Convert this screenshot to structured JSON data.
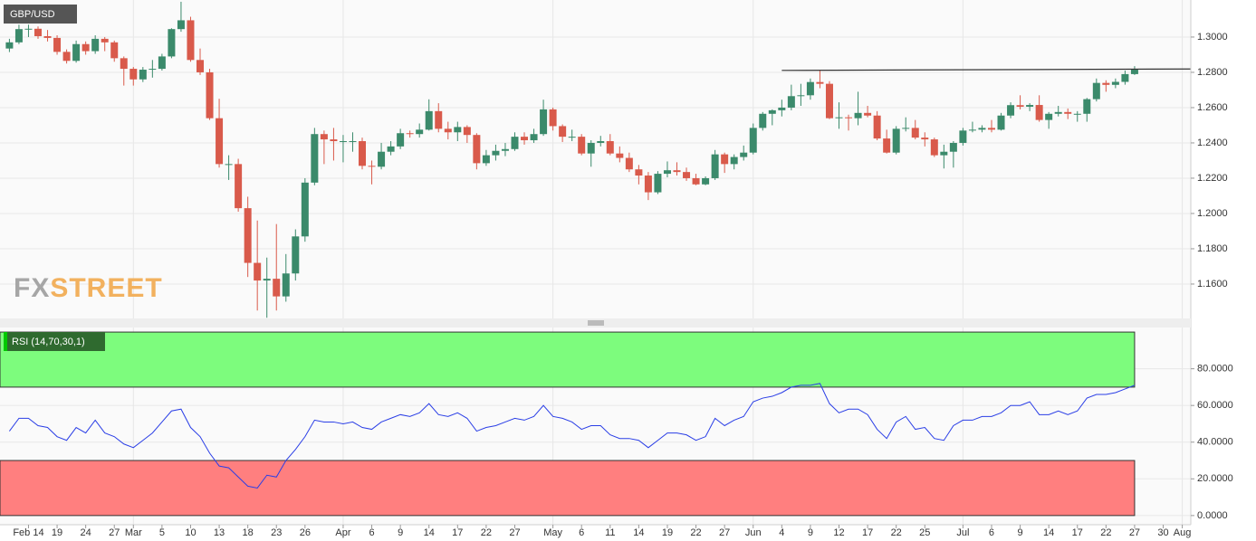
{
  "chart_data": [
    {
      "type": "candlestick",
      "title": "GBP/USD",
      "categories": [
        null,
        null,
        "Feb 14",
        null,
        null,
        "19",
        null,
        null,
        "24",
        null,
        null,
        "27",
        null,
        "Mar",
        null,
        null,
        "5",
        null,
        null,
        "10",
        null,
        null,
        "13",
        null,
        null,
        "18",
        null,
        null,
        "23",
        null,
        null,
        "26",
        null,
        null,
        null,
        "Apr",
        null,
        null,
        "6",
        null,
        null,
        "9",
        null,
        null,
        "14",
        null,
        null,
        "17",
        null,
        null,
        "22",
        null,
        null,
        "27",
        null,
        null,
        null,
        "May",
        null,
        null,
        "6",
        null,
        null,
        "11",
        null,
        null,
        "14",
        null,
        null,
        "19",
        null,
        null,
        "22",
        null,
        null,
        "27",
        null,
        null,
        "Jun",
        null,
        null,
        "4",
        null,
        null,
        "9",
        null,
        null,
        "12",
        null,
        null,
        "17",
        null,
        null,
        "22",
        null,
        null,
        "25",
        null,
        null,
        null,
        "Jul",
        null,
        null,
        "6",
        null,
        null,
        "9",
        null,
        null,
        "14",
        null,
        null,
        "17",
        null,
        null,
        "22",
        null,
        null,
        "27",
        null,
        null,
        "30",
        null,
        "Aug"
      ],
      "open": [
        1.2935,
        1.297,
        1.3045,
        1.3047,
        1.3005,
        1.2995,
        1.2916,
        1.2865,
        1.296,
        1.292,
        1.299,
        1.297,
        1.288,
        1.282,
        1.276,
        1.2815,
        1.282,
        1.289,
        1.3045,
        1.3095,
        1.287,
        1.28,
        1.254,
        1.228,
        1.228,
        1.203,
        1.172,
        1.162,
        1.163,
        1.153,
        1.166,
        1.187,
        1.2175,
        1.245,
        1.242,
        1.241,
        1.241,
        1.241,
        1.227,
        1.2265,
        1.235,
        1.238,
        1.2455,
        1.245,
        1.2475,
        1.258,
        1.248,
        1.246,
        1.249,
        1.2445,
        1.2285,
        1.233,
        1.2355,
        1.2365,
        1.2435,
        1.2415,
        1.245,
        1.259,
        1.2495,
        1.2435,
        1.2435,
        1.234,
        1.24,
        1.241,
        1.234,
        1.2315,
        1.225,
        1.2215,
        1.212,
        1.2225,
        1.2245,
        1.2235,
        1.22,
        1.2165,
        1.22,
        1.2335,
        1.228,
        1.232,
        1.2345,
        1.2485,
        1.2565,
        1.2585,
        1.26,
        1.2665,
        1.267,
        1.2745,
        1.2735,
        1.254,
        1.2545,
        1.254,
        1.257,
        1.2555,
        1.2425,
        1.2345,
        1.248,
        1.2485,
        1.243,
        1.242,
        1.233,
        1.235,
        1.24,
        1.247,
        1.2475,
        1.2485,
        1.2475,
        1.2555,
        1.2614,
        1.2605,
        1.2615,
        1.253,
        1.2565,
        1.2575,
        1.2565,
        1.2565,
        1.2648,
        1.274,
        1.2729,
        1.2746,
        1.279,
        null,
        null,
        null,
        null,
        null
      ],
      "high": [
        1.299,
        1.307,
        1.307,
        1.306,
        1.304,
        1.301,
        1.293,
        1.298,
        1.2975,
        1.301,
        1.3,
        1.298,
        1.289,
        1.283,
        1.283,
        1.287,
        1.2905,
        1.305,
        1.32,
        1.3115,
        1.2935,
        1.282,
        1.265,
        1.233,
        1.231,
        1.2095,
        1.196,
        1.175,
        1.194,
        1.177,
        1.191,
        1.22,
        1.2485,
        1.247,
        1.2485,
        1.2445,
        1.246,
        1.243,
        1.23,
        1.24,
        1.241,
        1.248,
        1.247,
        1.251,
        1.2647,
        1.2625,
        1.252,
        1.252,
        1.25,
        1.2455,
        1.236,
        1.239,
        1.24,
        1.246,
        1.246,
        1.248,
        1.2645,
        1.26,
        1.2505,
        1.2475,
        1.245,
        1.2415,
        1.244,
        1.245,
        1.238,
        1.2345,
        1.2275,
        1.2235,
        1.224,
        1.2295,
        1.229,
        1.226,
        1.2225,
        1.221,
        1.236,
        1.2345,
        1.2335,
        1.2385,
        1.251,
        1.2575,
        1.259,
        1.2645,
        1.273,
        1.2735,
        1.2765,
        1.2813,
        1.275,
        1.263,
        1.256,
        1.269,
        1.261,
        1.258,
        1.2475,
        1.2495,
        1.2545,
        1.253,
        1.246,
        1.243,
        1.239,
        1.241,
        1.2485,
        1.252,
        1.25,
        1.253,
        1.257,
        1.263,
        1.267,
        1.2625,
        1.267,
        1.2575,
        1.261,
        1.2595,
        1.258,
        1.2655,
        1.2765,
        1.2755,
        1.2765,
        1.281,
        1.2835,
        null,
        null,
        null,
        null,
        null
      ],
      "low": [
        1.2915,
        1.296,
        1.3,
        1.299,
        1.2975,
        1.29,
        1.285,
        1.2855,
        1.29,
        1.2905,
        1.292,
        1.286,
        1.2725,
        1.2725,
        1.2745,
        1.277,
        1.281,
        1.288,
        1.303,
        1.286,
        1.2785,
        1.253,
        1.226,
        1.219,
        1.201,
        1.164,
        1.145,
        1.1409,
        1.145,
        1.15,
        1.162,
        1.184,
        1.216,
        1.228,
        1.23,
        1.229,
        1.235,
        1.225,
        1.2165,
        1.225,
        1.233,
        1.2365,
        1.243,
        1.243,
        1.247,
        1.246,
        1.242,
        1.241,
        1.24,
        1.225,
        1.227,
        1.23,
        1.2325,
        1.2355,
        1.239,
        1.24,
        1.244,
        1.247,
        1.2405,
        1.241,
        1.233,
        1.2265,
        1.238,
        1.233,
        1.229,
        1.2235,
        1.2165,
        1.2076,
        1.211,
        1.2205,
        1.2215,
        1.2185,
        1.216,
        1.216,
        1.219,
        1.223,
        1.225,
        1.23,
        1.2335,
        1.247,
        1.25,
        1.255,
        1.2585,
        1.261,
        1.2645,
        1.271,
        1.2535,
        1.248,
        1.247,
        1.25,
        1.2545,
        1.2415,
        1.234,
        1.2335,
        1.2465,
        1.242,
        1.238,
        1.232,
        1.2255,
        1.226,
        1.2385,
        1.246,
        1.246,
        1.246,
        1.247,
        1.254,
        1.259,
        1.258,
        1.252,
        1.248,
        1.255,
        1.2535,
        1.252,
        1.252,
        1.2635,
        1.269,
        1.271,
        1.273,
        1.2785,
        null,
        null,
        null,
        null,
        null
      ],
      "close": [
        1.297,
        1.3045,
        1.3047,
        1.3005,
        1.2995,
        1.2916,
        1.2865,
        1.296,
        1.292,
        1.299,
        1.297,
        1.288,
        1.282,
        1.276,
        1.2815,
        1.282,
        1.289,
        1.3045,
        1.3095,
        1.287,
        1.28,
        1.254,
        1.228,
        1.228,
        1.203,
        1.172,
        1.162,
        1.163,
        1.153,
        1.166,
        1.187,
        1.2175,
        1.245,
        1.242,
        1.241,
        1.241,
        1.241,
        1.227,
        1.2265,
        1.235,
        1.238,
        1.2455,
        1.245,
        1.2475,
        1.258,
        1.248,
        1.246,
        1.249,
        1.2445,
        1.2285,
        1.233,
        1.2355,
        1.2365,
        1.2435,
        1.2415,
        1.245,
        1.259,
        1.2495,
        1.2435,
        1.2435,
        1.234,
        1.24,
        1.241,
        1.234,
        1.2315,
        1.225,
        1.2215,
        1.212,
        1.2225,
        1.2245,
        1.2235,
        1.22,
        1.2165,
        1.22,
        1.2335,
        1.228,
        1.232,
        1.2345,
        1.2485,
        1.2565,
        1.2585,
        1.26,
        1.2665,
        1.267,
        1.2745,
        1.2735,
        1.254,
        1.2545,
        1.254,
        1.257,
        1.2555,
        1.2425,
        1.2345,
        1.248,
        1.2485,
        1.243,
        1.242,
        1.233,
        1.235,
        1.24,
        1.247,
        1.2475,
        1.2485,
        1.2475,
        1.2555,
        1.2614,
        1.2605,
        1.2615,
        1.253,
        1.2565,
        1.2575,
        1.2565,
        1.2565,
        1.2648,
        1.274,
        1.2729,
        1.2746,
        1.279,
        1.2815,
        null,
        null,
        null,
        null,
        null
      ],
      "up_color": "#3b8a6b",
      "down_color": "#d95a4b",
      "ylim": [
        1.1405,
        1.321
      ],
      "yticks": [
        {
          "value": 1.16,
          "label": "1.1600"
        },
        {
          "value": 1.18,
          "label": "1.1800"
        },
        {
          "value": 1.2,
          "label": "1.2000"
        },
        {
          "value": 1.22,
          "label": "1.2200"
        },
        {
          "value": 1.24,
          "label": "1.2400"
        },
        {
          "value": 1.26,
          "label": "1.2600"
        },
        {
          "value": 1.28,
          "label": "1.2800"
        },
        {
          "value": 1.3,
          "label": "1.3000"
        }
      ],
      "grid": true,
      "trend_line": {
        "x": [
          81,
          124
        ],
        "y": [
          1.2811,
          1.2819
        ],
        "color": "#333333"
      },
      "logo": [
        "FX",
        "STREET"
      ]
    },
    {
      "type": "line",
      "title": "RSI (14,70,30,1)",
      "values": [
        46,
        53,
        53,
        49,
        48,
        43,
        41,
        48,
        45,
        52,
        45,
        43,
        39,
        37,
        41,
        45,
        51,
        57,
        58,
        48,
        43,
        34,
        27,
        26,
        21,
        16,
        15,
        22,
        21,
        30,
        36,
        43,
        52,
        51,
        51,
        50,
        51,
        48,
        47,
        51,
        53,
        55,
        54,
        56,
        61,
        55,
        54,
        56,
        53,
        46,
        48,
        49,
        51,
        53,
        52,
        54,
        60,
        54,
        53,
        51,
        47,
        49,
        49,
        44,
        42,
        42,
        41,
        37,
        41,
        45,
        45,
        44,
        41,
        43,
        53,
        49,
        52,
        54,
        62,
        64,
        65,
        67,
        70,
        71,
        71,
        72,
        61,
        56,
        58,
        58,
        55,
        47,
        42,
        51,
        54,
        47,
        48,
        42,
        41,
        49,
        52,
        52,
        54,
        54,
        56,
        60,
        60,
        62,
        55,
        55,
        57,
        55,
        57,
        64,
        66,
        66,
        67,
        69,
        71,
        null,
        null,
        null,
        null,
        null
      ],
      "color": "#2a3ee6",
      "ylim": [
        -5,
        102.5
      ],
      "yticks": [
        {
          "value": 0,
          "label": "0.0000"
        },
        {
          "value": 20,
          "label": "20.0000"
        },
        {
          "value": 40,
          "label": "40.0000"
        },
        {
          "value": 60,
          "label": "60.0000"
        },
        {
          "value": 80,
          "label": "80.0000"
        }
      ],
      "grid": true,
      "bands": [
        {
          "range": [
            70,
            100
          ],
          "color": "#7dfc7d"
        },
        {
          "range": [
            0,
            30
          ],
          "color": "#ff7f7f"
        }
      ]
    }
  ]
}
